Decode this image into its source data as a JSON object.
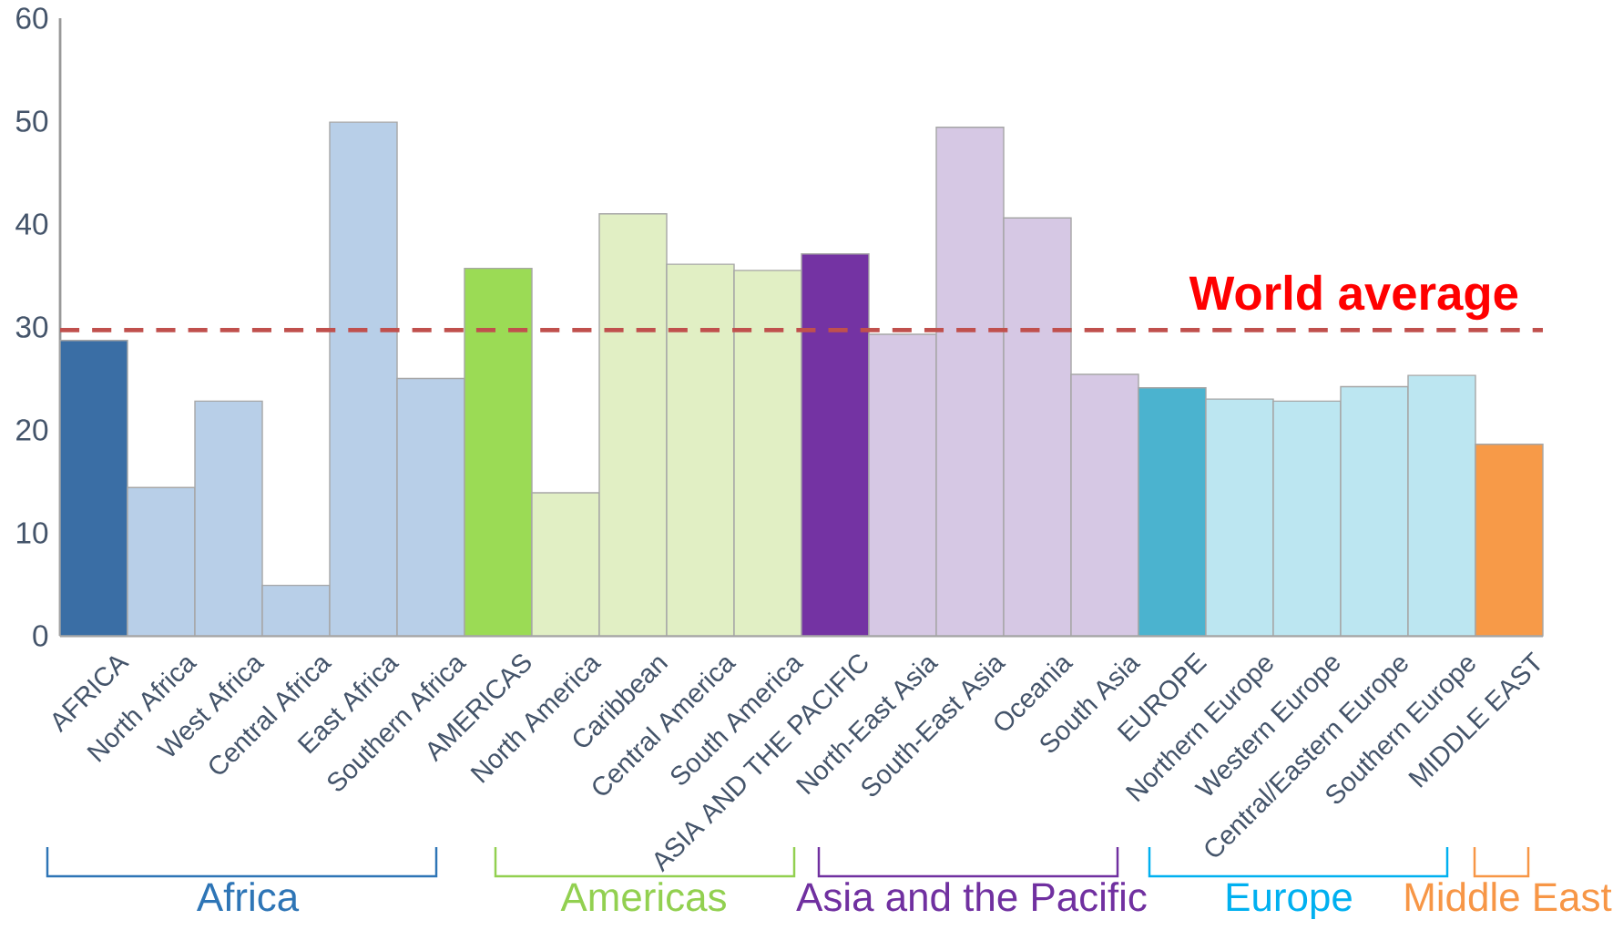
{
  "chart_data": {
    "type": "bar",
    "categories": [
      "AFRICA",
      "North Africa",
      "West Africa",
      "Central Africa",
      "East Africa",
      "Southern Africa",
      "AMERICAS",
      "North America",
      "Caribbean",
      "Central America",
      "South America",
      "ASIA AND THE PACIFIC",
      "North-East Asia",
      "South-East Asia",
      "Oceania",
      "South Asia",
      "EUROPE",
      "Northern Europe",
      "Western Europe",
      "Central/Eastern Europe",
      "Southern Europe",
      "MIDDLE EAST"
    ],
    "values": [
      28.7,
      14.4,
      22.8,
      4.9,
      49.9,
      25.0,
      35.7,
      13.9,
      41.0,
      36.1,
      35.5,
      37.1,
      29.3,
      49.4,
      40.6,
      25.4,
      24.1,
      23.0,
      22.8,
      24.2,
      25.3,
      18.6
    ],
    "colors": [
      "#3a6ea5",
      "#b8cfe8",
      "#b8cfe8",
      "#b8cfe8",
      "#b8cfe8",
      "#b8cfe8",
      "#9bdb55",
      "#e1efc4",
      "#e1efc4",
      "#e1efc4",
      "#e1efc4",
      "#7433a3",
      "#d6c8e4",
      "#d6c8e4",
      "#d6c8e4",
      "#d6c8e4",
      "#4bb3cf",
      "#bce6f1",
      "#bce6f1",
      "#bce6f1",
      "#bce6f1",
      "#f79a48"
    ],
    "ylim": [
      0,
      60
    ],
    "yticks": [
      0,
      10,
      20,
      30,
      40,
      50,
      60
    ],
    "ref_lines": [
      {
        "axis": "y",
        "value": 29.7,
        "label": "World average",
        "color": "#c0504d",
        "line_style": "dashed"
      }
    ],
    "annotations": [
      "Africa",
      "Americas",
      "Asia and the Pacific",
      "Europe",
      "Middle East"
    ]
  }
}
